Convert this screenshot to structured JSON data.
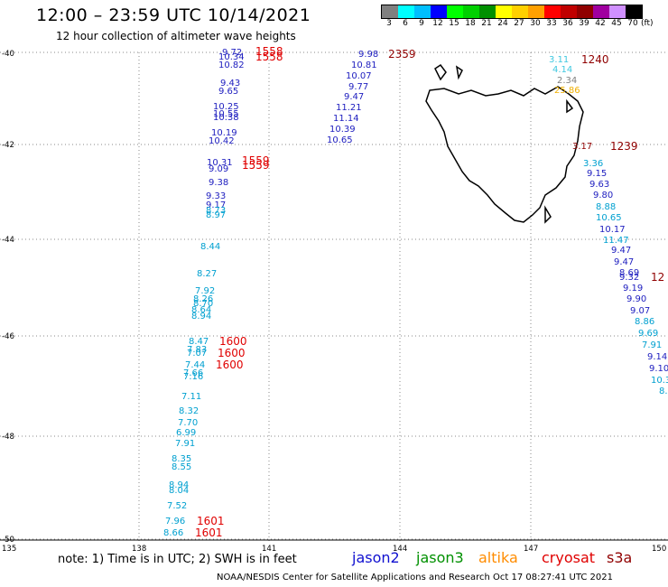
{
  "header": {
    "title": "12:00 – 23:59 UTC 10/14/2021",
    "subtitle": "12 hour collection of altimeter wave heights"
  },
  "legend": {
    "unit": "(ft)",
    "labels": [
      "3",
      "6",
      "9",
      "12",
      "15",
      "18",
      "21",
      "24",
      "27",
      "30",
      "33",
      "36",
      "39",
      "42",
      "45",
      "70"
    ],
    "colors": [
      "#808080",
      "#00ffff",
      "#00bfff",
      "#0000ff",
      "#00ff00",
      "#00d000",
      "#009000",
      "#ffff00",
      "#ffd000",
      "#ffa000",
      "#ff0000",
      "#c00000",
      "#900000",
      "#a000a0",
      "#d090ff",
      "#000000"
    ]
  },
  "axes": {
    "lat_labels": [
      "-40",
      "-42",
      "-44",
      "-46",
      "-48",
      "-50"
    ],
    "lon_labels": [
      "135",
      "138",
      "141",
      "144",
      "147",
      "150"
    ]
  },
  "tracks": {
    "a": {
      "color": "#2020c0",
      "values": [
        "9.72",
        "10.34",
        "10.82",
        "9.43",
        "9.65",
        "10.25",
        "10.55",
        "10.38",
        "10.19",
        "10.42",
        "10.31",
        "9.09",
        "9.38"
      ]
    },
    "b": {
      "color": "#00a0d0",
      "values": [
        "9.33",
        "9.17",
        "8.73",
        "8.97",
        "8.44",
        "8.27",
        "7.92",
        "8.26",
        "8.70",
        "8.64",
        "8.94",
        "8.47",
        "7.83",
        "7.07",
        "7.44",
        "7.66",
        "7.16",
        "7.11",
        "8.32",
        "7.70",
        "6.99",
        "7.91",
        "8.35",
        "8.55",
        "8.94",
        "8.04",
        "7.52",
        "7.96",
        "8.66"
      ]
    },
    "c": {
      "color": "#2020c0",
      "values": [
        "9.98",
        "10.81",
        "10.07",
        "9.77",
        "9.47",
        "11.21",
        "11.14",
        "10.39",
        "10.65"
      ]
    },
    "d": {
      "color": "#2020c0",
      "values": [
        "9.15",
        "9.63",
        "9.80",
        "10.17",
        "9.47",
        "9.47",
        "8.69",
        "9.32",
        "9.19",
        "9.90",
        "9.07",
        "9.14",
        "9.10"
      ]
    },
    "e": {
      "color": "#00a0d0",
      "values": [
        "3.36",
        "8.88",
        "10.65",
        "11.47",
        "8.86",
        "9.69",
        "7.91",
        "10.3",
        "8."
      ]
    },
    "f": {
      "values": [
        "3.11",
        "4.14",
        "2.34",
        "25.86",
        "3.17"
      ]
    }
  },
  "times": {
    "t1558a": "1558",
    "t1558b": "1558",
    "t2359": "2359",
    "t1240": "1240",
    "t1559a": "1559",
    "t1559b": "1559",
    "t1239": "1239",
    "t1600a": "1600",
    "t1600b": "1600",
    "t1600c": "1600",
    "t1601a": "1601",
    "t1601b": "1601",
    "t12": "12"
  },
  "footer": {
    "note": "note: 1) Time is in UTC; 2) SWH is in feet",
    "credit": "NOAA/NESDIS Center for Satellite Applications and Research    Oct 17 08:27:41 UTC 2021",
    "sats": [
      {
        "name": "jason2",
        "color": "#1010d0"
      },
      {
        "name": "jason3",
        "color": "#009000"
      },
      {
        "name": "altika",
        "color": "#ff8c00"
      },
      {
        "name": "cryosat",
        "color": "#e00000"
      },
      {
        "name": "s3a",
        "color": "#900000"
      }
    ]
  }
}
